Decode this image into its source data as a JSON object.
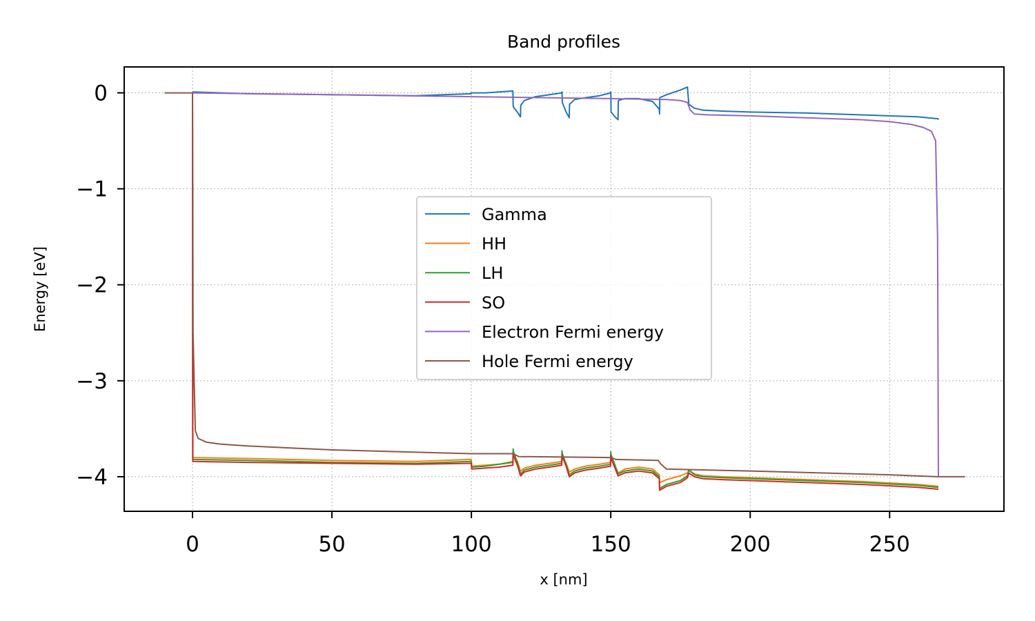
{
  "chart_data": {
    "type": "line",
    "title": "Band profiles",
    "xlabel": "x [nm]",
    "ylabel": "Energy [eV]",
    "xlim": [
      -24.5,
      291
    ],
    "ylim": [
      -4.36,
      0.27
    ],
    "xticks": [
      0,
      50,
      100,
      150,
      200,
      250
    ],
    "xtick_labels": [
      "0",
      "50",
      "100",
      "150",
      "200",
      "250"
    ],
    "yticks": [
      0,
      -1,
      -2,
      -3,
      -4
    ],
    "ytick_labels": [
      "0",
      "−1",
      "−2",
      "−3",
      "−4"
    ],
    "grid": true,
    "legend_position": "center",
    "series": [
      {
        "name": "Gamma",
        "color": "#1f77b4",
        "x": [
          0,
          20,
          50,
          80,
          99.9,
          100,
          105,
          110,
          114.9,
          115,
          115.1,
          116.5,
          117.6,
          117.7,
          119,
          123,
          128,
          132.4,
          132.5,
          132.6,
          134,
          135.1,
          135.2,
          137,
          141,
          146,
          149.9,
          150,
          150.1,
          151.5,
          152.6,
          152.7,
          155,
          160,
          165,
          167.4,
          167.5,
          167.6,
          170,
          175,
          177.5,
          178,
          180,
          183,
          190,
          200,
          220,
          240,
          260,
          267.4,
          267.5
        ],
        "y": [
          0.01,
          -0.01,
          -0.02,
          -0.03,
          -0.01,
          0.0,
          0.0,
          0.01,
          0.02,
          -0.13,
          -0.15,
          -0.2,
          -0.25,
          -0.13,
          -0.08,
          -0.04,
          -0.02,
          0.0,
          0.01,
          -0.1,
          -0.2,
          -0.26,
          -0.12,
          -0.07,
          -0.05,
          -0.03,
          0.0,
          0.01,
          -0.2,
          -0.25,
          -0.28,
          -0.08,
          -0.06,
          -0.06,
          -0.09,
          -0.17,
          -0.22,
          -0.05,
          -0.02,
          0.03,
          0.06,
          -0.12,
          -0.16,
          -0.18,
          -0.19,
          -0.2,
          -0.21,
          -0.23,
          -0.25,
          -0.27,
          -0.28
        ]
      },
      {
        "name": "HH",
        "color": "#ff7f0e",
        "x": [
          0,
          0.1,
          20,
          50,
          80,
          99.9,
          100,
          100.1,
          105,
          110,
          114.9,
          115,
          115.1,
          116.5,
          117.6,
          117.7,
          119,
          123,
          128,
          132.4,
          132.5,
          132.6,
          134,
          135.1,
          135.2,
          137,
          141,
          146,
          149.9,
          150,
          150.1,
          151.5,
          152.6,
          152.7,
          155,
          160,
          165,
          167.4,
          167.5,
          167.6,
          170,
          175,
          177.5,
          178,
          180,
          183,
          190,
          200,
          220,
          240,
          260,
          267.4,
          267.5
        ],
        "y": [
          0.0,
          -3.8,
          -3.81,
          -3.83,
          -3.84,
          -3.82,
          -3.83,
          -3.89,
          -3.88,
          -3.87,
          -3.84,
          -3.77,
          -3.78,
          -3.84,
          -3.94,
          -3.94,
          -3.91,
          -3.88,
          -3.86,
          -3.84,
          -3.79,
          -3.8,
          -3.86,
          -3.95,
          -3.95,
          -3.92,
          -3.89,
          -3.87,
          -3.85,
          -3.8,
          -3.82,
          -3.88,
          -3.96,
          -3.96,
          -3.92,
          -3.9,
          -3.92,
          -3.98,
          -4.06,
          -4.06,
          -4.03,
          -3.99,
          -3.96,
          -3.93,
          -3.97,
          -3.99,
          -4.0,
          -4.01,
          -4.03,
          -4.05,
          -4.08,
          -4.1,
          -4.1
        ]
      },
      {
        "name": "LH",
        "color": "#2ca02c",
        "x": [
          0,
          0.1,
          20,
          50,
          80,
          99.9,
          100,
          100.1,
          105,
          110,
          114.9,
          115,
          115.1,
          116.5,
          117.6,
          117.7,
          119,
          123,
          128,
          132.4,
          132.5,
          132.6,
          134,
          135.1,
          135.2,
          137,
          141,
          146,
          149.9,
          150,
          150.1,
          151.5,
          152.6,
          152.7,
          155,
          160,
          165,
          167.4,
          167.5,
          167.6,
          170,
          175,
          177.5,
          178,
          180,
          183,
          190,
          200,
          220,
          240,
          260,
          267.4,
          267.5
        ],
        "y": [
          0.0,
          -3.82,
          -3.83,
          -3.85,
          -3.86,
          -3.84,
          -3.85,
          -3.9,
          -3.89,
          -3.87,
          -3.85,
          -3.71,
          -3.74,
          -3.85,
          -3.97,
          -3.97,
          -3.93,
          -3.9,
          -3.88,
          -3.86,
          -3.73,
          -3.76,
          -3.87,
          -3.98,
          -3.98,
          -3.94,
          -3.91,
          -3.89,
          -3.87,
          -3.74,
          -3.77,
          -3.88,
          -3.97,
          -3.97,
          -3.94,
          -3.92,
          -3.94,
          -4.0,
          -4.12,
          -4.12,
          -4.08,
          -4.04,
          -3.99,
          -3.93,
          -3.98,
          -4.0,
          -4.01,
          -4.02,
          -4.04,
          -4.06,
          -4.09,
          -4.11,
          -4.11
        ]
      },
      {
        "name": "SO",
        "color": "#d62728",
        "x": [
          0,
          0.1,
          20,
          50,
          80,
          99.9,
          100,
          100.1,
          105,
          110,
          114.9,
          115,
          115.1,
          116.5,
          117.6,
          117.7,
          119,
          123,
          128,
          132.4,
          132.5,
          132.6,
          134,
          135.1,
          135.2,
          137,
          141,
          146,
          149.9,
          150,
          150.1,
          151.5,
          152.6,
          152.7,
          155,
          160,
          165,
          167.4,
          167.5,
          167.6,
          170,
          175,
          177.5,
          178,
          180,
          183,
          190,
          200,
          220,
          240,
          260,
          267.4,
          267.5
        ],
        "y": [
          0.0,
          -3.84,
          -3.85,
          -3.86,
          -3.87,
          -3.86,
          -3.86,
          -3.92,
          -3.91,
          -3.9,
          -3.88,
          -3.76,
          -3.78,
          -3.88,
          -3.99,
          -3.99,
          -3.95,
          -3.92,
          -3.9,
          -3.88,
          -3.77,
          -3.79,
          -3.89,
          -4.0,
          -4.0,
          -3.96,
          -3.93,
          -3.91,
          -3.89,
          -3.78,
          -3.81,
          -3.91,
          -3.99,
          -3.99,
          -3.96,
          -3.94,
          -3.96,
          -4.02,
          -4.14,
          -4.14,
          -4.1,
          -4.06,
          -4.01,
          -3.96,
          -4.0,
          -4.02,
          -4.03,
          -4.04,
          -4.06,
          -4.08,
          -4.11,
          -4.13,
          -4.13
        ]
      },
      {
        "name": "Electron Fermi energy",
        "color": "#9467bd",
        "x": [
          0,
          50,
          100,
          150,
          170,
          175,
          177.5,
          178.5,
          180,
          185,
          200,
          220,
          240,
          250,
          258,
          262,
          265,
          266.5,
          267.2,
          267.5
        ],
        "y": [
          0.0,
          -0.02,
          -0.04,
          -0.06,
          -0.07,
          -0.08,
          -0.1,
          -0.18,
          -0.22,
          -0.23,
          -0.24,
          -0.26,
          -0.28,
          -0.3,
          -0.33,
          -0.36,
          -0.4,
          -0.5,
          -1.5,
          -4.0
        ]
      },
      {
        "name": "Hole Fermi energy",
        "color": "#8c564b",
        "x": [
          -10,
          0,
          0.2,
          1,
          2,
          5,
          10,
          20,
          50,
          100,
          115,
          117,
          150,
          152,
          167,
          168,
          170,
          200,
          250,
          267,
          277
        ],
        "y": [
          0.0,
          0.0,
          -2.5,
          -3.52,
          -3.6,
          -3.64,
          -3.66,
          -3.68,
          -3.72,
          -3.76,
          -3.76,
          -3.79,
          -3.8,
          -3.82,
          -3.83,
          -3.87,
          -3.92,
          -3.94,
          -3.98,
          -4.0,
          -4.0
        ]
      }
    ]
  }
}
